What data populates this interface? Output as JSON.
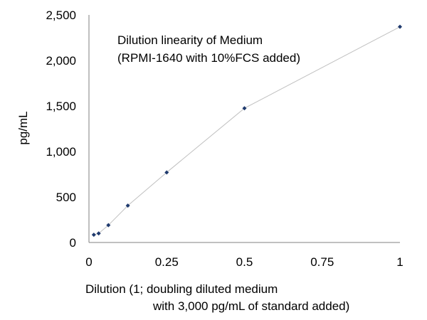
{
  "chart_data": {
    "type": "scatter",
    "title": "",
    "annotation_lines": [
      "Dilution linearity of Medium",
      "(RPMI-1640 with 10%FCS added)"
    ],
    "xlabel_lines": [
      "Dilution (1; doubling diluted medium",
      "with 3,000 pg/mL of standard added)"
    ],
    "ylabel": "pg/mL",
    "xlim": [
      0,
      1
    ],
    "ylim": [
      0,
      2500
    ],
    "x_ticks": [
      0,
      0.25,
      0.5,
      0.75,
      1
    ],
    "x_tick_labels": [
      "0",
      "0.25",
      "0.5",
      "0.75",
      "1"
    ],
    "y_ticks": [
      0,
      500,
      1000,
      1500,
      2000,
      2500
    ],
    "y_tick_labels": [
      "0",
      "500",
      "1,000",
      "1,500",
      "2,000",
      "2,500"
    ],
    "grid": false,
    "series": [
      {
        "x": [
          0.015625,
          0.03125,
          0.0625,
          0.125,
          0.25,
          0.5,
          1
        ],
        "y": [
          85,
          100,
          190,
          405,
          770,
          1475,
          2370
        ],
        "marker_color": "#1f3a6e",
        "line_color": "#c0c0c0"
      }
    ]
  }
}
